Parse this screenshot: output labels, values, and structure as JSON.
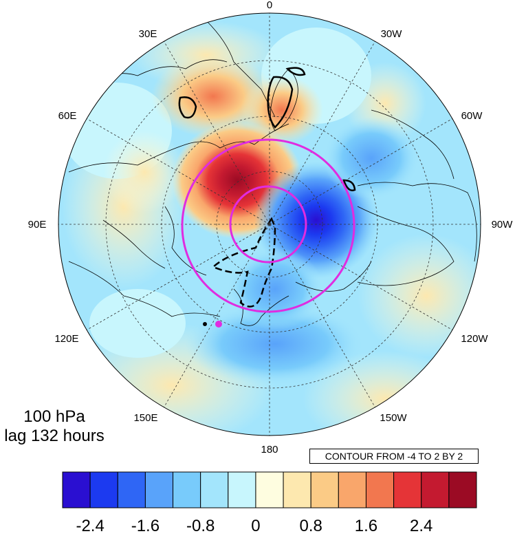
{
  "map": {
    "projection": "polar stereographic (north pole)",
    "longitude_labels": [
      {
        "text": "0",
        "lon": 0
      },
      {
        "text": "30W",
        "lon": -30
      },
      {
        "text": "60W",
        "lon": -60
      },
      {
        "text": "90W",
        "lon": -90
      },
      {
        "text": "120W",
        "lon": -120
      },
      {
        "text": "150W",
        "lon": -150
      },
      {
        "text": "180",
        "lon": 180
      },
      {
        "text": "150E",
        "lon": 150
      },
      {
        "text": "120E",
        "lon": 120
      },
      {
        "text": "90E",
        "lon": 90
      },
      {
        "text": "60E",
        "lon": 60
      },
      {
        "text": "30E",
        "lon": 30
      }
    ],
    "level": "100 hPa",
    "lag": "lag 132 hours",
    "contour_note": "CONTOUR FROM -4 TO 2 BY 2",
    "shading_colors": [
      "#2a0fd1",
      "#1c3af0",
      "#2f66f5",
      "#59a3fa",
      "#78cbfb",
      "#a3e5fc",
      "#c8f6fd",
      "#fefde0",
      "#fde8af",
      "#fbcb86",
      "#f9a66b",
      "#f2774f",
      "#e53437",
      "#c41a30",
      "#9b0b24"
    ],
    "marker_colors": {
      "ring": "#e02ce0",
      "dot_black": "#000000",
      "dot_magenta": "#e02ce0"
    }
  },
  "colorbar": {
    "tick_labels": [
      "-2.4",
      "-1.6",
      "-0.8",
      "0",
      "0.8",
      "1.6",
      "2.4"
    ],
    "boundaries": [
      -2.4,
      -2.0,
      -1.6,
      -1.2,
      -0.8,
      -0.4,
      0,
      0.4,
      0.8,
      1.2,
      1.6,
      2.0,
      2.4,
      2.8
    ],
    "colors": [
      "#2a0fd1",
      "#1c3af0",
      "#2f66f5",
      "#59a3fa",
      "#78cbfb",
      "#a3e5fc",
      "#c8f6fd",
      "#fefde0",
      "#fde8af",
      "#fbcb86",
      "#f9a66b",
      "#f2774f",
      "#e53437",
      "#c41a30",
      "#9b0b24"
    ]
  }
}
